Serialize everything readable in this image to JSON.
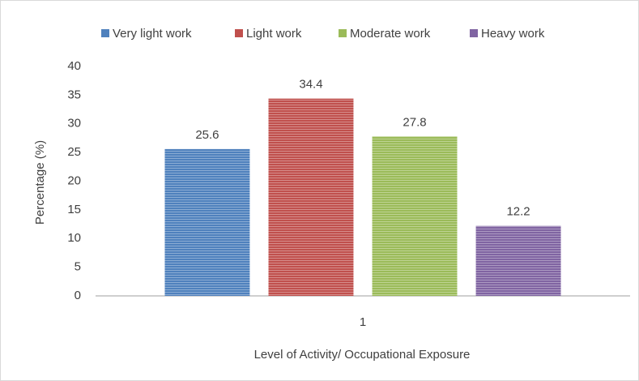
{
  "chart_data": {
    "type": "bar",
    "categories": [
      "1"
    ],
    "series": [
      {
        "name": "Very light work",
        "color": "#4f81bd",
        "values": [
          25.6
        ]
      },
      {
        "name": "Light work",
        "color": "#c0504d",
        "values": [
          34.4
        ]
      },
      {
        "name": "Moderate work",
        "color": "#9bbb59",
        "values": [
          27.8
        ]
      },
      {
        "name": "Heavy work",
        "color": "#8064a2",
        "values": [
          12.2
        ]
      }
    ],
    "xlabel": "Level of Activity/ Occupational Exposure",
    "ylabel": "Percentage (%)",
    "ylim": [
      0,
      40
    ],
    "yticks": [
      0,
      5,
      10,
      15,
      20,
      25,
      30,
      35,
      40
    ],
    "grid": false,
    "legend": "top"
  }
}
